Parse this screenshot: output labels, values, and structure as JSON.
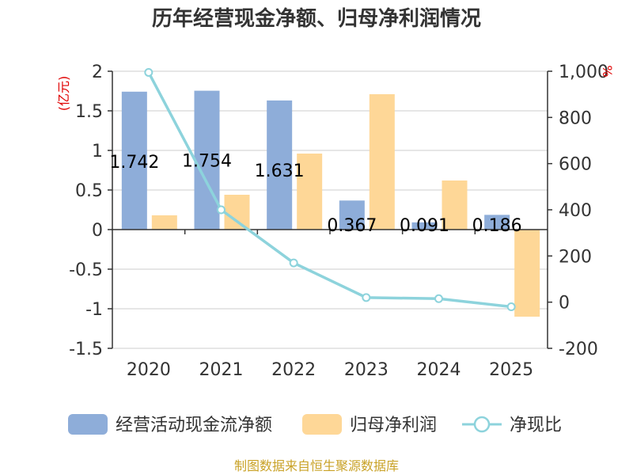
{
  "chart_data": {
    "type": "bar+line",
    "title": "历年经营现金净额、归母净利润情况",
    "categories": [
      "2020",
      "2021",
      "2022",
      "2023",
      "2024",
      "2025"
    ],
    "series": [
      {
        "name": "经营活动现金流净额",
        "axis": "left",
        "kind": "bar",
        "color": "#8eadd9",
        "values": [
          1.742,
          1.754,
          1.631,
          0.367,
          0.091,
          0.186
        ],
        "labels": [
          "1.742",
          "1.754",
          "1.631",
          "0.367",
          "0.091",
          "0.186"
        ]
      },
      {
        "name": "归母净利润",
        "axis": "left",
        "kind": "bar",
        "color": "#fed797",
        "values": [
          0.18,
          0.44,
          0.96,
          1.71,
          0.62,
          -1.1
        ]
      },
      {
        "name": "净现比",
        "axis": "right",
        "kind": "line",
        "color": "#8dd3dc",
        "values": [
          995,
          400,
          170,
          20,
          15,
          -20
        ]
      }
    ],
    "left_axis": {
      "unit": "(亿元)",
      "ylim": [
        -1.5,
        2
      ],
      "ticks": [
        "2",
        "1.5",
        "1",
        "0.5",
        "0",
        "-0.5",
        "-1",
        "-1.5"
      ],
      "tick_values": [
        2,
        1.5,
        1,
        0.5,
        0,
        -0.5,
        -1,
        -1.5
      ]
    },
    "right_axis": {
      "unit": "%",
      "ylim": [
        -200,
        1000
      ],
      "ticks": [
        "1,000",
        "800",
        "600",
        "400",
        "200",
        "0",
        "-200"
      ],
      "tick_values": [
        1000,
        800,
        600,
        400,
        200,
        0,
        -200
      ]
    },
    "legend": [
      "经营活动现金流净额",
      "归母净利润",
      "净现比"
    ],
    "legend_position": "bottom",
    "grid": true
  },
  "source": "制图数据来自恒生聚源数据库"
}
